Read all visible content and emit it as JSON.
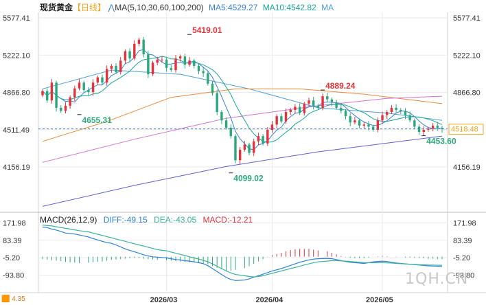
{
  "header": {
    "instrument": "现货黄金",
    "period": "【日线】",
    "ma_label": "MA(5,10,30,60,100,200)",
    "ma5_label": "MA5:4529.27",
    "ma10_label": "MA10:4542.82",
    "ma_more": "MA"
  },
  "macd_header": {
    "title": "MACD(26,12,9)",
    "diff_label": "DIFF:-49.15",
    "dea_label": "DEA:-43.05",
    "macd_label": "MACD:-12.21"
  },
  "colors": {
    "up": "#e0333c",
    "down": "#29a87a",
    "ma5": "#3a7fd6",
    "ma10": "#17a598",
    "ma30": "#4e9cd3",
    "ma60": "#e58a3a",
    "ma100": "#d472d1",
    "ma200": "#5b5fc7",
    "price_tag": "#f2a31c",
    "diff": "#2f7fd4",
    "dea": "#3ab09c",
    "grid": "#eaeaea"
  },
  "chart_data": {
    "type": "candlestick",
    "x_ticks": [
      "2026/03",
      "2026/04",
      "2026/05"
    ],
    "price_axis": {
      "left_ticks": [
        "5577.41",
        "5222.10",
        "4866.80",
        "4511.49",
        "4156.19"
      ],
      "right_ticks": [
        "5577.41",
        "5222.10",
        "4866.80",
        "4511.49",
        "4156.19"
      ],
      "range": [
        3750,
        5630
      ]
    },
    "current_price": 4518.48,
    "annotations": [
      {
        "label": "5419.01",
        "value": 5419.01,
        "kind": "high"
      },
      {
        "label": "4655.31",
        "value": 4655.31,
        "kind": "low"
      },
      {
        "label": "4099.02",
        "value": 4099.02,
        "kind": "low"
      },
      {
        "label": "4889.24",
        "value": 4889.24,
        "kind": "high"
      },
      {
        "label": "4453.60",
        "value": 4453.6,
        "kind": "low"
      }
    ],
    "closes": [
      4880,
      4790,
      4960,
      4720,
      4690,
      4740,
      4820,
      4905,
      4960,
      4890,
      4870,
      4960,
      5010,
      4960,
      5090,
      5120,
      5060,
      5170,
      5260,
      5190,
      5330,
      5370,
      5230,
      5040,
      5150,
      5180,
      5180,
      5100,
      5080,
      5190,
      5210,
      5130,
      5170,
      5120,
      5070,
      5050,
      4950,
      4860,
      4680,
      4600,
      4530,
      4450,
      4220,
      4320,
      4370,
      4290,
      4400,
      4450,
      4380,
      4510,
      4560,
      4640,
      4590,
      4680,
      4700,
      4730,
      4670,
      4760,
      4790,
      4740,
      4720,
      4830,
      4800,
      4770,
      4720,
      4690,
      4640,
      4580,
      4600,
      4550,
      4560,
      4540,
      4510,
      4600,
      4650,
      4680,
      4720,
      4700,
      4690,
      4650,
      4600,
      4540,
      4490,
      4510,
      4520,
      4550,
      4530,
      4518.48
    ],
    "ma_series": [
      {
        "name": "MA30",
        "x": [
          0,
          15,
          30,
          45,
          60,
          75,
          87
        ],
        "values": [
          4900,
          5080,
          5040,
          4900,
          4720,
          4670,
          4600
        ]
      },
      {
        "name": "MA60",
        "x": [
          0,
          14,
          28,
          42,
          56,
          70,
          87
        ],
        "values": [
          4400,
          4590,
          4820,
          4900,
          4900,
          4850,
          4760
        ]
      },
      {
        "name": "MA100",
        "x": [
          0,
          20,
          40,
          60,
          75,
          87
        ],
        "values": [
          4200,
          4420,
          4620,
          4740,
          4810,
          4830
        ]
      },
      {
        "name": "MA200",
        "x": [
          0,
          20,
          40,
          60,
          87
        ],
        "values": [
          3780,
          3980,
          4160,
          4300,
          4450
        ]
      }
    ],
    "macd_axis": {
      "ticks": [
        "171.98",
        "83.39",
        "-5.20",
        "-93.80"
      ],
      "range": [
        -140,
        180
      ]
    },
    "diff": [
      150,
      148,
      140,
      135,
      128,
      120,
      118,
      115,
      110,
      100,
      92,
      85,
      78,
      72,
      68,
      60,
      50,
      40,
      32,
      25,
      18,
      10,
      4,
      0,
      -2,
      -6,
      -10,
      -14,
      -16,
      -20,
      -22,
      -26,
      -30,
      -35,
      -45,
      -60,
      -75,
      -90,
      -105,
      -115,
      -120,
      -118,
      -112,
      -104,
      -96,
      -88,
      -80,
      -72,
      -66,
      -60,
      -52,
      -44,
      -36,
      -28,
      -22,
      -16,
      -12,
      -10,
      -8,
      -10,
      -14,
      -20,
      -24,
      -28,
      -30,
      -32,
      -34,
      -30,
      -26,
      -24,
      -22,
      -24,
      -28,
      -32,
      -36,
      -38,
      -40,
      -42,
      -44,
      -46,
      -47,
      -48,
      -49.15
    ],
    "dea": [
      160,
      158,
      156,
      152,
      148,
      144,
      140,
      136,
      132,
      126,
      120,
      114,
      108,
      102,
      96,
      90,
      84,
      78,
      72,
      66,
      60,
      54,
      48,
      42,
      36,
      30,
      24,
      18,
      12,
      6,
      0,
      -6,
      -12,
      -18,
      -26,
      -36,
      -48,
      -60,
      -72,
      -82,
      -90,
      -96,
      -100,
      -102,
      -100,
      -96,
      -90,
      -84,
      -78,
      -72,
      -66,
      -60,
      -54,
      -48,
      -42,
      -36,
      -30,
      -26,
      -22,
      -20,
      -20,
      -21,
      -22,
      -24,
      -26,
      -28,
      -30,
      -30,
      -30,
      -30,
      -30,
      -31,
      -32,
      -34,
      -36,
      -38,
      -39,
      -40,
      -41,
      -42,
      -42,
      -43,
      -43.05
    ],
    "macd": [
      -12,
      -15,
      -18,
      -20,
      -22,
      -26,
      -28,
      -30,
      -32,
      -30,
      -28,
      -26,
      -24,
      -20,
      -16,
      -14,
      -12,
      -10,
      -8,
      -6,
      -8,
      -10,
      -12,
      -14,
      -16,
      -18,
      -20,
      -22,
      -24,
      -26,
      -28,
      -30,
      -32,
      -34,
      -38,
      -48,
      -56,
      -64,
      -70,
      -70,
      -66,
      -58,
      -48,
      -36,
      -24,
      -12,
      -2,
      8,
      14,
      20,
      28,
      34,
      38,
      40,
      40,
      40,
      36,
      32,
      28,
      20,
      12,
      4,
      -2,
      -6,
      -8,
      -8,
      -8,
      -4,
      0,
      2,
      4,
      2,
      0,
      -2,
      -4,
      -4,
      -6,
      -8,
      -8,
      -10,
      -10,
      -12,
      -12.21
    ]
  },
  "watermark": "1QH.CN",
  "corner_badge": "🟧 4.35"
}
